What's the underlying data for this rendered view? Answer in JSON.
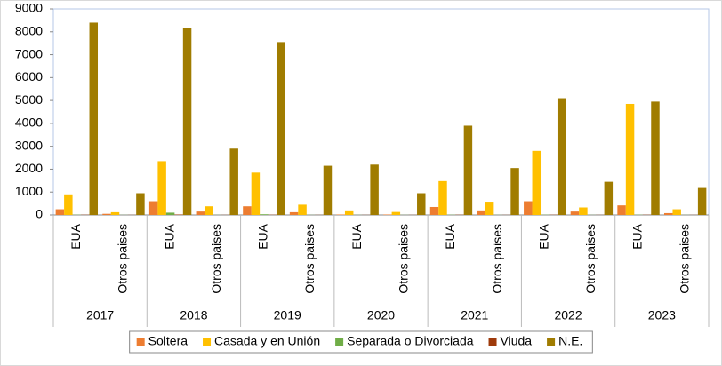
{
  "chart_data": {
    "type": "bar",
    "categories": [
      "EUA",
      "Otros paises",
      "EUA",
      "Otros paises",
      "EUA",
      "Otros paises",
      "EUA",
      "Otros paises",
      "EUA",
      "Otros paises",
      "EUA",
      "Otros paises",
      "EUA",
      "Otros paises"
    ],
    "groups": [
      "2017",
      "2018",
      "2019",
      "2020",
      "2021",
      "2022",
      "2023"
    ],
    "series": [
      {
        "name": "Soltera",
        "color": "#ED7D31",
        "values": [
          250,
          50,
          600,
          150,
          380,
          120,
          20,
          20,
          350,
          200,
          600,
          150,
          420,
          80
        ]
      },
      {
        "name": "Casada y en Unión",
        "color": "#FFC000",
        "values": [
          900,
          120,
          2350,
          380,
          1850,
          450,
          200,
          130,
          1480,
          580,
          2800,
          330,
          4850,
          250
        ]
      },
      {
        "name": "Separada o Divorciada",
        "color": "#70AD47",
        "values": [
          10,
          5,
          100,
          5,
          30,
          5,
          5,
          5,
          10,
          5,
          10,
          5,
          10,
          5
        ]
      },
      {
        "name": "Viuda",
        "color": "#9E3A0B",
        "values": [
          10,
          5,
          20,
          5,
          10,
          5,
          5,
          5,
          10,
          5,
          10,
          5,
          10,
          5
        ]
      },
      {
        "name": "N.E.",
        "color": "#A07C00",
        "values": [
          8400,
          950,
          8150,
          2900,
          7550,
          2150,
          2200,
          950,
          3900,
          2050,
          5100,
          1450,
          4950,
          1180
        ]
      }
    ],
    "ylim": [
      0,
      9000
    ],
    "yticks": [
      0,
      1000,
      2000,
      3000,
      4000,
      5000,
      6000,
      7000,
      8000,
      9000
    ],
    "legend": "bottom"
  }
}
